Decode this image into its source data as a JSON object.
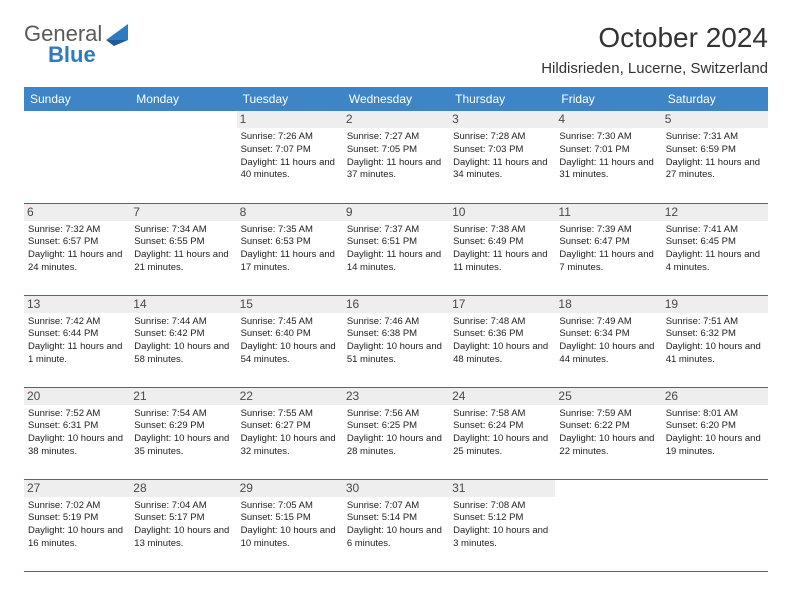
{
  "logo": {
    "word1": "General",
    "word2": "Blue",
    "word1_color": "#5a5a5a",
    "word2_color": "#2f7bbf",
    "triangle_color": "#2f7bbf"
  },
  "title": "October 2024",
  "location": "Hildisrieden, Lucerne, Switzerland",
  "header_bg": "#3d85c6",
  "header_fg": "#ffffff",
  "daynum_bg": "#eeeeee",
  "row_border_color": "#2f6fa8",
  "background_color": "#ffffff",
  "text_color": "#222222",
  "day_headers": [
    "Sunday",
    "Monday",
    "Tuesday",
    "Wednesday",
    "Thursday",
    "Friday",
    "Saturday"
  ],
  "weeks": [
    [
      null,
      null,
      {
        "n": "1",
        "sunrise": "Sunrise: 7:26 AM",
        "sunset": "Sunset: 7:07 PM",
        "daylight": "Daylight: 11 hours and 40 minutes."
      },
      {
        "n": "2",
        "sunrise": "Sunrise: 7:27 AM",
        "sunset": "Sunset: 7:05 PM",
        "daylight": "Daylight: 11 hours and 37 minutes."
      },
      {
        "n": "3",
        "sunrise": "Sunrise: 7:28 AM",
        "sunset": "Sunset: 7:03 PM",
        "daylight": "Daylight: 11 hours and 34 minutes."
      },
      {
        "n": "4",
        "sunrise": "Sunrise: 7:30 AM",
        "sunset": "Sunset: 7:01 PM",
        "daylight": "Daylight: 11 hours and 31 minutes."
      },
      {
        "n": "5",
        "sunrise": "Sunrise: 7:31 AM",
        "sunset": "Sunset: 6:59 PM",
        "daylight": "Daylight: 11 hours and 27 minutes."
      }
    ],
    [
      {
        "n": "6",
        "sunrise": "Sunrise: 7:32 AM",
        "sunset": "Sunset: 6:57 PM",
        "daylight": "Daylight: 11 hours and 24 minutes."
      },
      {
        "n": "7",
        "sunrise": "Sunrise: 7:34 AM",
        "sunset": "Sunset: 6:55 PM",
        "daylight": "Daylight: 11 hours and 21 minutes."
      },
      {
        "n": "8",
        "sunrise": "Sunrise: 7:35 AM",
        "sunset": "Sunset: 6:53 PM",
        "daylight": "Daylight: 11 hours and 17 minutes."
      },
      {
        "n": "9",
        "sunrise": "Sunrise: 7:37 AM",
        "sunset": "Sunset: 6:51 PM",
        "daylight": "Daylight: 11 hours and 14 minutes."
      },
      {
        "n": "10",
        "sunrise": "Sunrise: 7:38 AM",
        "sunset": "Sunset: 6:49 PM",
        "daylight": "Daylight: 11 hours and 11 minutes."
      },
      {
        "n": "11",
        "sunrise": "Sunrise: 7:39 AM",
        "sunset": "Sunset: 6:47 PM",
        "daylight": "Daylight: 11 hours and 7 minutes."
      },
      {
        "n": "12",
        "sunrise": "Sunrise: 7:41 AM",
        "sunset": "Sunset: 6:45 PM",
        "daylight": "Daylight: 11 hours and 4 minutes."
      }
    ],
    [
      {
        "n": "13",
        "sunrise": "Sunrise: 7:42 AM",
        "sunset": "Sunset: 6:44 PM",
        "daylight": "Daylight: 11 hours and 1 minute."
      },
      {
        "n": "14",
        "sunrise": "Sunrise: 7:44 AM",
        "sunset": "Sunset: 6:42 PM",
        "daylight": "Daylight: 10 hours and 58 minutes."
      },
      {
        "n": "15",
        "sunrise": "Sunrise: 7:45 AM",
        "sunset": "Sunset: 6:40 PM",
        "daylight": "Daylight: 10 hours and 54 minutes."
      },
      {
        "n": "16",
        "sunrise": "Sunrise: 7:46 AM",
        "sunset": "Sunset: 6:38 PM",
        "daylight": "Daylight: 10 hours and 51 minutes."
      },
      {
        "n": "17",
        "sunrise": "Sunrise: 7:48 AM",
        "sunset": "Sunset: 6:36 PM",
        "daylight": "Daylight: 10 hours and 48 minutes."
      },
      {
        "n": "18",
        "sunrise": "Sunrise: 7:49 AM",
        "sunset": "Sunset: 6:34 PM",
        "daylight": "Daylight: 10 hours and 44 minutes."
      },
      {
        "n": "19",
        "sunrise": "Sunrise: 7:51 AM",
        "sunset": "Sunset: 6:32 PM",
        "daylight": "Daylight: 10 hours and 41 minutes."
      }
    ],
    [
      {
        "n": "20",
        "sunrise": "Sunrise: 7:52 AM",
        "sunset": "Sunset: 6:31 PM",
        "daylight": "Daylight: 10 hours and 38 minutes."
      },
      {
        "n": "21",
        "sunrise": "Sunrise: 7:54 AM",
        "sunset": "Sunset: 6:29 PM",
        "daylight": "Daylight: 10 hours and 35 minutes."
      },
      {
        "n": "22",
        "sunrise": "Sunrise: 7:55 AM",
        "sunset": "Sunset: 6:27 PM",
        "daylight": "Daylight: 10 hours and 32 minutes."
      },
      {
        "n": "23",
        "sunrise": "Sunrise: 7:56 AM",
        "sunset": "Sunset: 6:25 PM",
        "daylight": "Daylight: 10 hours and 28 minutes."
      },
      {
        "n": "24",
        "sunrise": "Sunrise: 7:58 AM",
        "sunset": "Sunset: 6:24 PM",
        "daylight": "Daylight: 10 hours and 25 minutes."
      },
      {
        "n": "25",
        "sunrise": "Sunrise: 7:59 AM",
        "sunset": "Sunset: 6:22 PM",
        "daylight": "Daylight: 10 hours and 22 minutes."
      },
      {
        "n": "26",
        "sunrise": "Sunrise: 8:01 AM",
        "sunset": "Sunset: 6:20 PM",
        "daylight": "Daylight: 10 hours and 19 minutes."
      }
    ],
    [
      {
        "n": "27",
        "sunrise": "Sunrise: 7:02 AM",
        "sunset": "Sunset: 5:19 PM",
        "daylight": "Daylight: 10 hours and 16 minutes."
      },
      {
        "n": "28",
        "sunrise": "Sunrise: 7:04 AM",
        "sunset": "Sunset: 5:17 PM",
        "daylight": "Daylight: 10 hours and 13 minutes."
      },
      {
        "n": "29",
        "sunrise": "Sunrise: 7:05 AM",
        "sunset": "Sunset: 5:15 PM",
        "daylight": "Daylight: 10 hours and 10 minutes."
      },
      {
        "n": "30",
        "sunrise": "Sunrise: 7:07 AM",
        "sunset": "Sunset: 5:14 PM",
        "daylight": "Daylight: 10 hours and 6 minutes."
      },
      {
        "n": "31",
        "sunrise": "Sunrise: 7:08 AM",
        "sunset": "Sunset: 5:12 PM",
        "daylight": "Daylight: 10 hours and 3 minutes."
      },
      null,
      null
    ]
  ]
}
